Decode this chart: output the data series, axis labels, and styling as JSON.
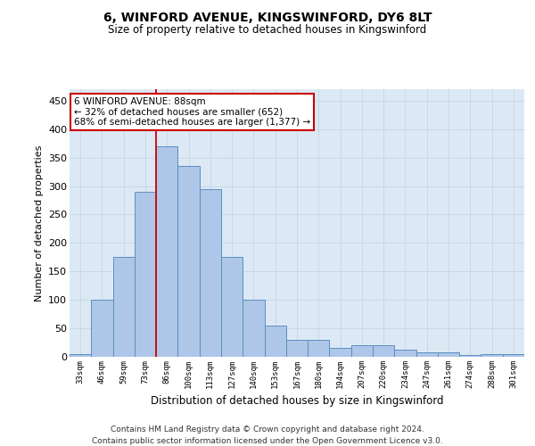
{
  "title": "6, WINFORD AVENUE, KINGSWINFORD, DY6 8LT",
  "subtitle": "Size of property relative to detached houses in Kingswinford",
  "xlabel": "Distribution of detached houses by size in Kingswinford",
  "ylabel": "Number of detached properties",
  "categories": [
    "33sqm",
    "46sqm",
    "59sqm",
    "73sqm",
    "86sqm",
    "100sqm",
    "113sqm",
    "127sqm",
    "140sqm",
    "153sqm",
    "167sqm",
    "180sqm",
    "194sqm",
    "207sqm",
    "220sqm",
    "234sqm",
    "247sqm",
    "261sqm",
    "274sqm",
    "288sqm",
    "301sqm"
  ],
  "values": [
    5,
    100,
    175,
    290,
    370,
    335,
    295,
    175,
    100,
    55,
    30,
    30,
    15,
    20,
    20,
    12,
    8,
    8,
    3,
    5,
    5
  ],
  "bar_color": "#aec6e8",
  "bar_edge_color": "#5a8fc0",
  "vline_x_index": 4,
  "vline_color": "#cc0000",
  "annotation_text": "6 WINFORD AVENUE: 88sqm\n← 32% of detached houses are smaller (652)\n68% of semi-detached houses are larger (1,377) →",
  "annotation_box_color": "#ffffff",
  "annotation_box_edge_color": "#cc0000",
  "ylim": [
    0,
    470
  ],
  "yticks": [
    0,
    50,
    100,
    150,
    200,
    250,
    300,
    350,
    400,
    450
  ],
  "footer_line1": "Contains HM Land Registry data © Crown copyright and database right 2024.",
  "footer_line2": "Contains public sector information licensed under the Open Government Licence v3.0.",
  "grid_color": "#c8d8e8",
  "background_color": "#dce9f5"
}
